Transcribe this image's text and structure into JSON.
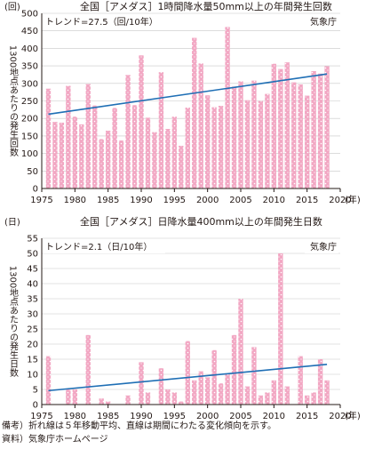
{
  "chart_data": [
    {
      "type": "bar",
      "title": "全国［アメダス］1時間降水量50mm以上の年間発生回数",
      "unit": "(回)",
      "ylabel": "1300地点あたりの発生回数",
      "xlabel": "(年)",
      "trend_label": "トレンド=27.5（回/10年）",
      "source_label": "気象庁",
      "x": [
        1976,
        1977,
        1978,
        1979,
        1980,
        1981,
        1982,
        1983,
        1984,
        1985,
        1986,
        1987,
        1988,
        1989,
        1990,
        1991,
        1992,
        1993,
        1994,
        1995,
        1996,
        1997,
        1998,
        1999,
        2000,
        2001,
        2002,
        2003,
        2004,
        2005,
        2006,
        2007,
        2008,
        2009,
        2010,
        2011,
        2012,
        2013,
        2014,
        2015,
        2016,
        2017,
        2018
      ],
      "values": [
        285,
        190,
        188,
        293,
        205,
        183,
        298,
        237,
        141,
        165,
        230,
        137,
        324,
        238,
        380,
        202,
        161,
        332,
        170,
        205,
        122,
        231,
        430,
        357,
        266,
        232,
        236,
        461,
        291,
        306,
        252,
        308,
        250,
        270,
        356,
        341,
        360,
        303,
        297,
        265,
        335,
        328,
        349
      ],
      "trend": {
        "x": [
          1976,
          2018
        ],
        "y": [
          212,
          327
        ]
      },
      "xlim": [
        1975,
        2020
      ],
      "ylim": [
        0,
        500
      ],
      "xticks": [
        1975,
        1980,
        1985,
        1990,
        1995,
        2000,
        2005,
        2010,
        2015,
        2020
      ],
      "yticks": [
        0,
        50,
        100,
        150,
        200,
        250,
        300,
        350,
        400,
        450,
        500
      ],
      "bar_color": "#f2a7c3",
      "trend_color": "#1f6fb5"
    },
    {
      "type": "bar",
      "title": "全国［アメダス］日降水量400mm以上の年間発生日数",
      "unit": "(日)",
      "ylabel": "1300地点あたりの発生日数",
      "xlabel": "(年)",
      "trend_label": "トレンド=2.1（日/10年）",
      "source_label": "気象庁",
      "x": [
        1976,
        1977,
        1978,
        1979,
        1980,
        1981,
        1982,
        1983,
        1984,
        1985,
        1986,
        1987,
        1988,
        1989,
        1990,
        1991,
        1992,
        1993,
        1994,
        1995,
        1996,
        1997,
        1998,
        1999,
        2000,
        2001,
        2002,
        2003,
        2004,
        2005,
        2006,
        2007,
        2008,
        2009,
        2010,
        2011,
        2012,
        2013,
        2014,
        2015,
        2016,
        2017,
        2018
      ],
      "values": [
        16,
        0,
        0,
        5,
        5,
        0,
        23,
        0,
        2,
        1,
        0,
        0,
        3,
        0,
        14,
        4,
        0,
        12,
        5,
        4,
        1,
        21,
        8,
        11,
        9,
        18,
        7,
        10,
        23,
        35,
        6,
        19,
        3,
        4,
        8,
        50,
        6,
        0,
        16,
        3,
        4,
        15,
        8
      ],
      "trend": {
        "x": [
          1976,
          2018
        ],
        "y": [
          4.6,
          13.3
        ]
      },
      "xlim": [
        1975,
        2020
      ],
      "ylim": [
        0,
        55
      ],
      "xticks": [
        1975,
        1980,
        1985,
        1990,
        1995,
        2000,
        2005,
        2010,
        2015,
        2020
      ],
      "yticks": [
        0,
        5,
        10,
        15,
        20,
        25,
        30,
        35,
        40,
        45,
        50,
        55
      ],
      "bar_color": "#f2a7c3",
      "trend_color": "#1f6fb5"
    }
  ],
  "notes": {
    "remark": "備考）折れ線は５年移動平均、直線は期間にわたる変化傾向を示す。",
    "source": "資料）気象庁ホームページ"
  }
}
